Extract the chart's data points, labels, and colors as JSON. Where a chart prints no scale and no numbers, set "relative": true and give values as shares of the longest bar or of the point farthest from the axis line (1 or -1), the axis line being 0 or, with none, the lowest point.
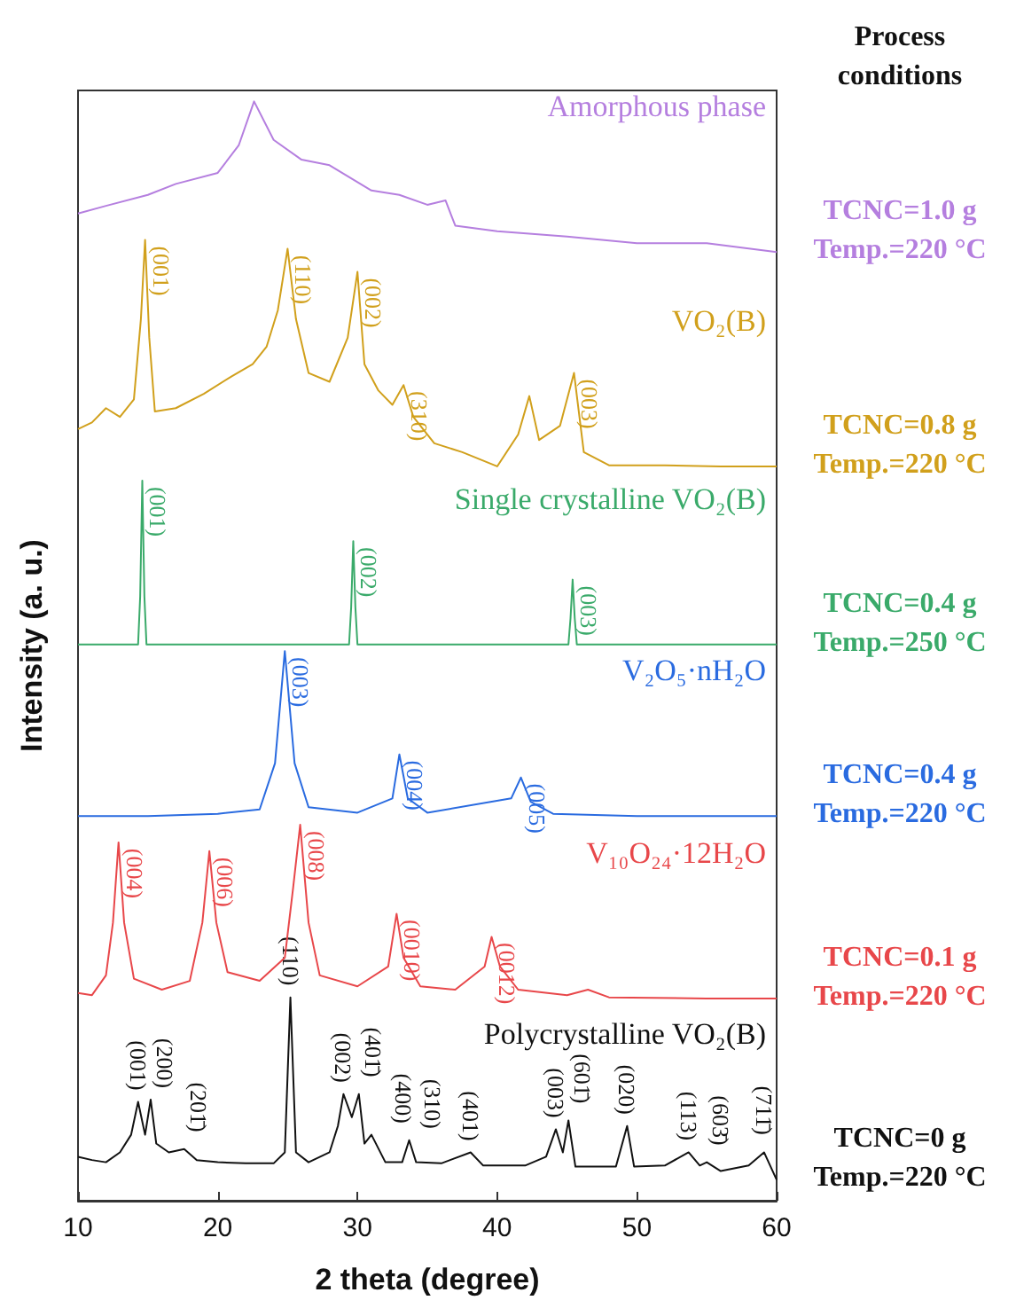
{
  "chart_data": {
    "type": "line",
    "relative": true,
    "xlabel": "2 theta (degree)",
    "ylabel": "Intensity (a. u.)",
    "legend": false,
    "grid": false,
    "legend_title": "Process conditions",
    "xlim": [
      10,
      60
    ],
    "xticks": [
      10,
      20,
      30,
      40,
      50,
      60
    ],
    "series": [
      {
        "name": "Amorphous phase",
        "color": "#b57fdf",
        "x": [
          10,
          12,
          15,
          17,
          20,
          21.5,
          22.6,
          24,
          26,
          28,
          31,
          33,
          35,
          36.3,
          37,
          40,
          45,
          50,
          55,
          60
        ],
        "values": [
          0.898,
          0.905,
          0.915,
          0.925,
          0.935,
          0.96,
          1.0,
          0.965,
          0.947,
          0.942,
          0.919,
          0.915,
          0.906,
          0.91,
          0.887,
          0.882,
          0.877,
          0.871,
          0.871,
          0.863
        ]
      },
      {
        "name": "VO₂(B)",
        "color": "#d1a01c",
        "x": [
          10,
          11,
          12,
          13,
          14,
          14.5,
          14.8,
          15.1,
          15.5,
          17,
          19,
          21,
          22.5,
          23.5,
          24.3,
          25,
          25.6,
          26.5,
          28,
          29.3,
          30,
          30.5,
          31.5,
          32.5,
          33.3,
          34,
          35.5,
          37.5,
          40,
          41.5,
          42.3,
          43,
          44.5,
          45.5,
          46.2,
          48,
          52,
          56,
          60
        ],
        "values": [
          0.702,
          0.708,
          0.721,
          0.713,
          0.729,
          0.802,
          0.874,
          0.785,
          0.718,
          0.721,
          0.734,
          0.75,
          0.761,
          0.777,
          0.81,
          0.866,
          0.802,
          0.753,
          0.745,
          0.785,
          0.845,
          0.761,
          0.737,
          0.724,
          0.742,
          0.713,
          0.689,
          0.681,
          0.668,
          0.697,
          0.732,
          0.692,
          0.705,
          0.753,
          0.681,
          0.669,
          0.669,
          0.668,
          0.668
        ]
      },
      {
        "name": "Single crystalline VO₂(B)",
        "color": "#3aaa6a",
        "x": [
          10,
          14.3,
          14.45,
          14.6,
          14.75,
          14.9,
          29.4,
          29.55,
          29.7,
          29.85,
          30,
          45.1,
          45.25,
          45.4,
          45.55,
          45.7,
          60
        ],
        "values": [
          0.506,
          0.506,
          0.55,
          0.655,
          0.55,
          0.506,
          0.506,
          0.54,
          0.6,
          0.54,
          0.506,
          0.506,
          0.53,
          0.565,
          0.53,
          0.506,
          0.506
        ]
      },
      {
        "name": "V₂O₅·nH₂O",
        "color": "#2a6be0",
        "x": [
          10,
          15,
          20,
          23,
          24.1,
          24.8,
          25.5,
          26.5,
          30,
          32.5,
          33,
          33.6,
          35,
          41,
          41.7,
          42.4,
          44,
          50,
          60
        ],
        "values": [
          0.35,
          0.35,
          0.352,
          0.356,
          0.398,
          0.5,
          0.398,
          0.358,
          0.353,
          0.366,
          0.406,
          0.366,
          0.353,
          0.366,
          0.385,
          0.363,
          0.352,
          0.35,
          0.35
        ]
      },
      {
        "name": "V₁₀O₂₄·12H₂O",
        "color": "#e8474a",
        "x": [
          10,
          11,
          12,
          12.5,
          12.9,
          13.3,
          14,
          16,
          18,
          18.9,
          19.4,
          19.9,
          20.7,
          23,
          24.8,
          25.4,
          25.9,
          26.5,
          27.3,
          30,
          32.2,
          32.8,
          33.3,
          34.5,
          37,
          39.1,
          39.6,
          40.2,
          41.5,
          45,
          46.5,
          48,
          55,
          60
        ],
        "values": [
          0.189,
          0.187,
          0.205,
          0.253,
          0.326,
          0.253,
          0.202,
          0.192,
          0.2,
          0.253,
          0.318,
          0.253,
          0.208,
          0.2,
          0.221,
          0.285,
          0.342,
          0.253,
          0.205,
          0.195,
          0.213,
          0.261,
          0.221,
          0.195,
          0.192,
          0.213,
          0.24,
          0.213,
          0.192,
          0.187,
          0.192,
          0.185,
          0.184,
          0.184
        ]
      },
      {
        "name": "Polycrystalline VO₂(B)",
        "color": "#111111",
        "x": [
          10,
          11,
          12,
          13,
          13.8,
          14.3,
          14.8,
          15.2,
          15.6,
          16.5,
          17.6,
          18.5,
          20,
          22,
          24,
          24.8,
          25.2,
          25.6,
          26.5,
          28,
          28.6,
          29,
          29.6,
          30.1,
          30.5,
          31,
          32,
          33.2,
          33.7,
          34.2,
          36,
          38.1,
          39,
          42,
          43.5,
          44.2,
          44.7,
          45.1,
          45.6,
          48.5,
          49.3,
          49.8,
          52,
          53.7,
          54.5,
          55,
          56,
          58,
          59.1,
          60
        ],
        "values": [
          0.04,
          0.037,
          0.035,
          0.044,
          0.06,
          0.09,
          0.06,
          0.092,
          0.052,
          0.044,
          0.047,
          0.037,
          0.035,
          0.034,
          0.034,
          0.044,
          0.185,
          0.044,
          0.035,
          0.044,
          0.068,
          0.097,
          0.076,
          0.097,
          0.052,
          0.06,
          0.035,
          0.035,
          0.055,
          0.035,
          0.034,
          0.044,
          0.032,
          0.032,
          0.04,
          0.065,
          0.044,
          0.073,
          0.031,
          0.031,
          0.068,
          0.031,
          0.032,
          0.044,
          0.032,
          0.035,
          0.027,
          0.032,
          0.044,
          0.019
        ]
      }
    ],
    "annotations": [
      "TCNC=1.0 g\nTemp.=220 °C",
      "TCNC=0.8 g\nTemp.=220 °C",
      "TCNC=0.4 g\nTemp.=250 °C",
      "TCNC=0.4 g\nTemp.=220 °C",
      "TCNC=0.1 g\nTemp.=220 °C",
      "TCNC=0 g\nTemp.=220 °C",
      {
        "text": "(001)",
        "x": 14.8,
        "y": 0.874
      },
      {
        "text": "(110)",
        "x": 25,
        "y": 0.866
      },
      {
        "text": "(002)",
        "x": 30,
        "y": 0.845
      },
      {
        "text": "(310)",
        "x": 33.3,
        "y": 0.742
      },
      {
        "text": "(003)",
        "x": 45.5,
        "y": 0.753
      },
      {
        "text": "(001)",
        "x": 14.6,
        "y": 0.655
      },
      {
        "text": "(002)",
        "x": 29.7,
        "y": 0.6
      },
      {
        "text": "(003)",
        "x": 45.4,
        "y": 0.565
      },
      {
        "text": "(003)",
        "x": 24.8,
        "y": 0.5
      },
      {
        "text": "(004)",
        "x": 33,
        "y": 0.406
      },
      {
        "text": "(005)",
        "x": 41.7,
        "y": 0.385
      },
      {
        "text": "(004)",
        "x": 12.9,
        "y": 0.326
      },
      {
        "text": "(006)",
        "x": 19.4,
        "y": 0.318
      },
      {
        "text": "(008)",
        "x": 25.9,
        "y": 0.342
      },
      {
        "text": "(0010)",
        "x": 32.8,
        "y": 0.261
      },
      {
        "text": "(0012)",
        "x": 39.6,
        "y": 0.24
      },
      {
        "text": "(001)",
        "x": 14.3,
        "y": 0.09
      },
      {
        "text": "(200)",
        "x": 15.2,
        "y": 0.092
      },
      {
        "text": "(201̄)",
        "x": 17.6,
        "y": 0.047
      },
      {
        "text": "(110)",
        "x": 25.2,
        "y": 0.185
      },
      {
        "text": "(002)",
        "x": 29,
        "y": 0.097
      },
      {
        "text": "(401̄)",
        "x": 30.1,
        "y": 0.097
      },
      {
        "text": "(400)",
        "x": 31,
        "y": 0.06
      },
      {
        "text": "(310)",
        "x": 33.7,
        "y": 0.055
      },
      {
        "text": "(401)",
        "x": 38.1,
        "y": 0.044
      },
      {
        "text": "(003)",
        "x": 44.2,
        "y": 0.065
      },
      {
        "text": "(601̄)",
        "x": 45.1,
        "y": 0.073
      },
      {
        "text": "(020)",
        "x": 49.3,
        "y": 0.068
      },
      {
        "text": "(113)",
        "x": 53.7,
        "y": 0.044
      },
      {
        "text": "(603̄)",
        "x": 55,
        "y": 0.035
      },
      {
        "text": "(711̄)",
        "x": 59.1,
        "y": 0.044
      }
    ]
  }
}
